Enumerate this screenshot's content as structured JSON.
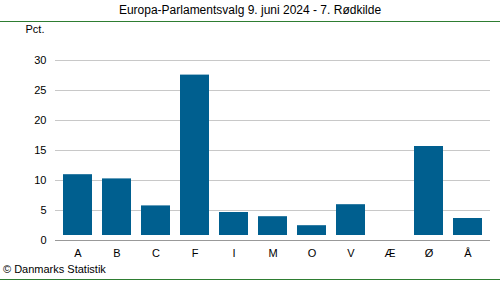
{
  "chart_data": {
    "type": "bar",
    "title": "Europa-Parlamentsvalg 9. juni 2024 - 7. Rødkilde",
    "y_label": "Pct.",
    "caption": "© Danmarks Statistik",
    "categories": [
      "A",
      "B",
      "C",
      "F",
      "I",
      "M",
      "O",
      "V",
      "Æ",
      "Ø",
      "Å"
    ],
    "values": [
      11.8,
      11.1,
      6.6,
      28.4,
      5.5,
      4.8,
      3.3,
      6.8,
      1.2,
      16.5,
      4.5
    ],
    "color": "#005f8f",
    "ylim": [
      0,
      30
    ],
    "yticks": [
      0,
      5,
      10,
      15,
      20,
      25,
      30
    ],
    "grid": true
  }
}
